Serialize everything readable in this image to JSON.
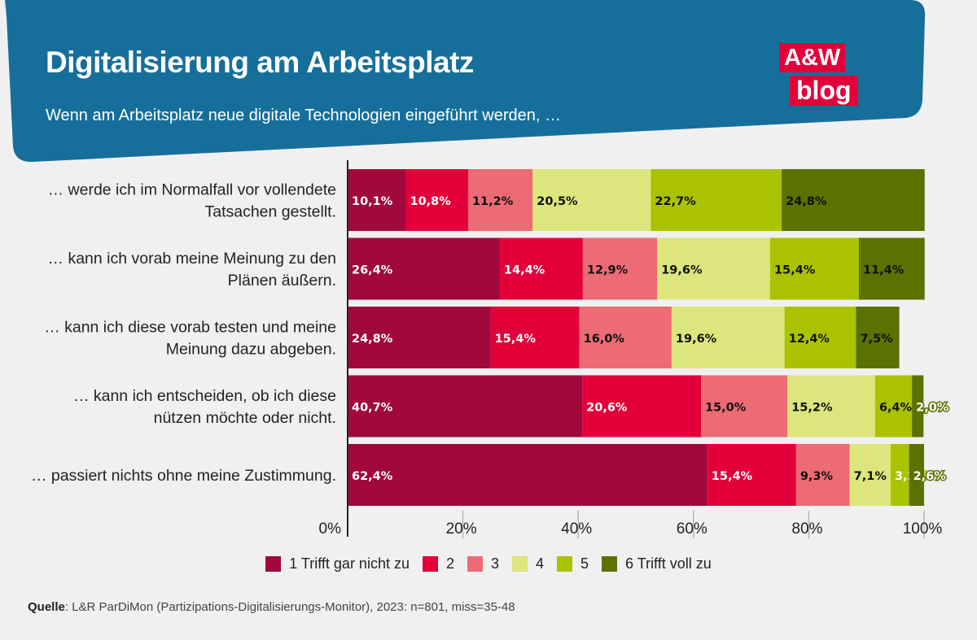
{
  "header": {
    "title": "Digitalisierung am Arbeitsplatz",
    "subtitle": "Wenn am Arbeitsplatz neue digitale Technologien eingeführt werden, …"
  },
  "logo": {
    "line1": "A&W",
    "line2": "blog"
  },
  "source": {
    "label": "Quelle",
    "text": ": L&R ParDiMon (Partizipations-Digitalisierungs-Monitor), 2023: n=801, miss=35-48"
  },
  "colors": {
    "banner": "#166f9a",
    "logo": "#e3003a",
    "series": [
      "#a0083e",
      "#e3003a",
      "#ec6b74",
      "#dce67d",
      "#abc200",
      "#5b7100"
    ]
  },
  "chart_data": {
    "type": "bar",
    "orientation": "horizontal",
    "stacked": true,
    "categories": [
      [
        "… werde ich im Normalfall vor vollendete",
        "Tatsachen gestellt."
      ],
      [
        "… kann ich vorab meine Meinung zu den",
        "Plänen äußern."
      ],
      [
        "… kann ich diese vorab testen und meine",
        "Meinung dazu abgeben."
      ],
      [
        "… kann ich entscheiden, ob ich diese",
        "nützen möchte oder nicht."
      ],
      [
        "… passiert nichts ohne meine Zustimmung."
      ]
    ],
    "series": [
      {
        "name": "1 Trifft gar nicht zu",
        "values": [
          10.1,
          26.4,
          24.8,
          40.7,
          62.4
        ],
        "labels": [
          "10,1%",
          "26,4%",
          "24,8%",
          "40,7%",
          "62,4%"
        ]
      },
      {
        "name": "2",
        "values": [
          10.8,
          14.4,
          15.4,
          20.6,
          15.4
        ],
        "labels": [
          "10,8%",
          "14,4%",
          "15,4%",
          "20,6%",
          "15,4%"
        ]
      },
      {
        "name": "3",
        "values": [
          11.2,
          12.9,
          16.0,
          15.0,
          9.3
        ],
        "labels": [
          "11,2%",
          "12,9%",
          "16,0%",
          "15,0%",
          "9,3%"
        ]
      },
      {
        "name": "4",
        "values": [
          20.5,
          19.6,
          19.6,
          15.2,
          7.1
        ],
        "labels": [
          "20,5%",
          "19,6%",
          "19,6%",
          "15,2%",
          "7,1%"
        ]
      },
      {
        "name": "5",
        "values": [
          22.7,
          15.4,
          12.4,
          6.4,
          3.2
        ],
        "labels": [
          "22,7%",
          "15,4%",
          "12,4%",
          "6,4%",
          "3,2%"
        ]
      },
      {
        "name": "6 Trifft voll zu",
        "values": [
          24.8,
          11.4,
          7.5,
          2.0,
          2.6
        ],
        "labels": [
          "24,8%",
          "11,4%",
          "7,5%",
          "2,0%",
          "2,6%"
        ]
      }
    ],
    "xlim": [
      0,
      100
    ],
    "xticks": [
      0,
      20,
      40,
      60,
      80,
      100
    ],
    "xtick_labels": [
      "0%",
      "20%",
      "40%",
      "60%",
      "80%",
      "100%"
    ],
    "legend_position": "bottom",
    "grid": false
  }
}
